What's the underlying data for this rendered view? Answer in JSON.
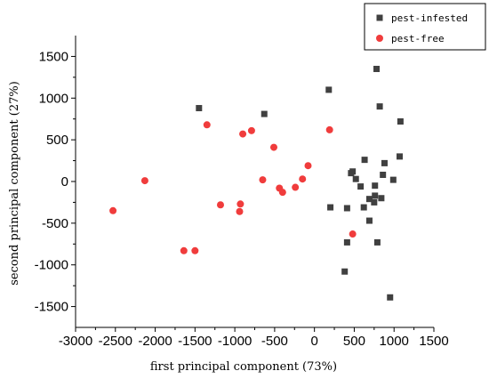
{
  "chart_data": {
    "type": "scatter",
    "title": "",
    "xlabel": "first principal component (73%)",
    "ylabel": "second principal component (27%)",
    "xlim": [
      -3000,
      1500
    ],
    "ylim": [
      -1750,
      1750
    ],
    "x_ticks": [
      -3000,
      -2500,
      -2000,
      -1500,
      -1000,
      -500,
      0,
      500,
      1000,
      1500
    ],
    "y_ticks": [
      -1500,
      -1000,
      -500,
      0,
      500,
      1000,
      1500
    ],
    "grid": false,
    "legend_position": "top-right",
    "series": [
      {
        "name": "pest-infested",
        "marker": "square",
        "color": "#404040",
        "points": [
          [
            -1450,
            880
          ],
          [
            -630,
            810
          ],
          [
            180,
            1100
          ],
          [
            780,
            1350
          ],
          [
            820,
            900
          ],
          [
            1080,
            720
          ],
          [
            1070,
            300
          ],
          [
            880,
            220
          ],
          [
            630,
            260
          ],
          [
            460,
            100
          ],
          [
            480,
            120
          ],
          [
            520,
            30
          ],
          [
            860,
            80
          ],
          [
            990,
            20
          ],
          [
            580,
            -60
          ],
          [
            760,
            -50
          ],
          [
            690,
            -210
          ],
          [
            760,
            -170
          ],
          [
            840,
            -200
          ],
          [
            750,
            -250
          ],
          [
            620,
            -310
          ],
          [
            200,
            -310
          ],
          [
            410,
            -320
          ],
          [
            690,
            -470
          ],
          [
            410,
            -730
          ],
          [
            790,
            -730
          ],
          [
            380,
            -1080
          ],
          [
            950,
            -1390
          ]
        ]
      },
      {
        "name": "pest-free",
        "marker": "circle",
        "color": "#f03c3c",
        "points": [
          [
            -1350,
            680
          ],
          [
            -900,
            570
          ],
          [
            -790,
            610
          ],
          [
            -510,
            410
          ],
          [
            190,
            620
          ],
          [
            -80,
            190
          ],
          [
            -2130,
            10
          ],
          [
            -650,
            20
          ],
          [
            -150,
            30
          ],
          [
            -440,
            -80
          ],
          [
            -400,
            -130
          ],
          [
            -240,
            -70
          ],
          [
            -1180,
            -280
          ],
          [
            -930,
            -270
          ],
          [
            -940,
            -360
          ],
          [
            -2530,
            -350
          ],
          [
            -1640,
            -830
          ],
          [
            -1500,
            -830
          ],
          [
            480,
            -630
          ]
        ]
      }
    ]
  }
}
